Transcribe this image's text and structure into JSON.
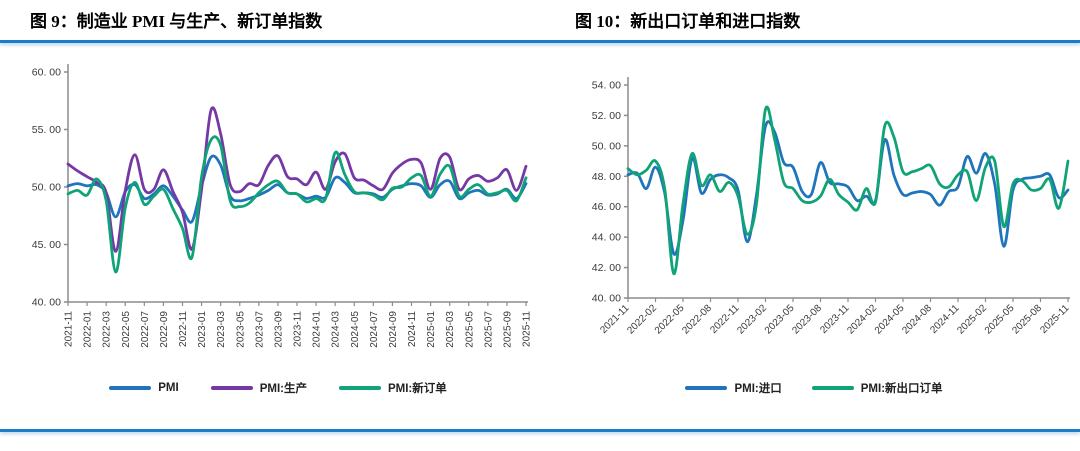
{
  "page": {
    "figure9_title": "图 9：制造业 PMI 与生产、新订单指数",
    "figure10_title": "图 10：新出口订单和进口指数",
    "accent_color": "#1C7CC5",
    "axis_color": "#8C8C8C"
  },
  "chart_data": [
    {
      "type": "line",
      "title": "制造业PMI与生产、新订单指数",
      "xlabel": "",
      "ylabel": "",
      "ylim": [
        40,
        60
      ],
      "y_ticks": [
        40,
        45,
        50,
        55,
        60
      ],
      "y_tick_labels": [
        "40. 00",
        "45. 00",
        "50. 00",
        "55. 00",
        "60. 00"
      ],
      "grid": false,
      "legend_position": "bottom",
      "tick_every": 2,
      "x": [
        "2021-11",
        "2021-12",
        "2022-01",
        "2022-02",
        "2022-03",
        "2022-04",
        "2022-05",
        "2022-06",
        "2022-07",
        "2022-08",
        "2022-09",
        "2022-10",
        "2022-11",
        "2022-12",
        "2023-01",
        "2023-02",
        "2023-03",
        "2023-04",
        "2023-05",
        "2023-06",
        "2023-07",
        "2023-08",
        "2023-09",
        "2023-10",
        "2023-11",
        "2023-12",
        "2024-01",
        "2024-02",
        "2024-03",
        "2024-04",
        "2024-05",
        "2024-06",
        "2024-07",
        "2024-08",
        "2024-09",
        "2024-10",
        "2024-11",
        "2024-12",
        "2025-01",
        "2025-02",
        "2025-03",
        "2025-04",
        "2025-05",
        "2025-06",
        "2025-07",
        "2025-08",
        "2025-09",
        "2025-10",
        "2025-11"
      ],
      "series": [
        {
          "name": "PMI",
          "color": "#1F74BC",
          "values": [
            50.1,
            50.3,
            50.1,
            50.2,
            49.5,
            47.4,
            49.6,
            50.2,
            49.0,
            49.4,
            50.1,
            49.2,
            48.0,
            47.0,
            50.1,
            52.6,
            51.9,
            49.2,
            48.8,
            49.0,
            49.3,
            49.7,
            50.2,
            49.5,
            49.4,
            49.0,
            49.2,
            49.1,
            50.8,
            50.4,
            49.5,
            49.5,
            49.4,
            49.1,
            49.8,
            50.1,
            50.3,
            50.1,
            49.1,
            50.2,
            50.5,
            49.0,
            49.5,
            49.7,
            49.3,
            49.4,
            49.8,
            49.0,
            50.3
          ]
        },
        {
          "name": "PMI:生产",
          "color": "#7539A5",
          "values": [
            52.0,
            51.4,
            50.9,
            50.4,
            49.5,
            44.4,
            49.7,
            52.8,
            49.8,
            49.8,
            51.5,
            49.6,
            47.8,
            44.6,
            49.8,
            56.7,
            54.6,
            50.2,
            49.6,
            50.3,
            50.2,
            51.9,
            52.7,
            50.9,
            50.7,
            50.2,
            51.3,
            49.8,
            52.2,
            52.9,
            50.8,
            50.6,
            50.1,
            49.8,
            51.2,
            52.0,
            52.4,
            52.1,
            49.8,
            52.5,
            52.6,
            49.8,
            50.7,
            51.0,
            50.5,
            50.8,
            51.5,
            49.7,
            51.8
          ]
        },
        {
          "name": "PMI:新订单",
          "color": "#0FA377",
          "values": [
            49.4,
            49.7,
            49.3,
            50.7,
            48.8,
            42.6,
            48.2,
            50.4,
            48.5,
            49.2,
            49.8,
            48.1,
            46.4,
            43.9,
            50.9,
            54.1,
            53.6,
            48.8,
            48.3,
            48.6,
            49.5,
            50.2,
            50.5,
            49.5,
            49.4,
            48.7,
            49.0,
            49.0,
            53.0,
            51.1,
            49.6,
            49.5,
            49.3,
            48.9,
            49.9,
            50.0,
            50.8,
            51.0,
            49.2,
            51.1,
            51.8,
            49.2,
            49.8,
            50.2,
            49.4,
            49.5,
            49.7,
            48.8,
            50.8
          ]
        }
      ]
    },
    {
      "type": "line",
      "title": "新出口订单和进口指数",
      "xlabel": "",
      "ylabel": "",
      "ylim": [
        40,
        54
      ],
      "y_ticks": [
        40,
        42,
        44,
        46,
        48,
        50,
        52,
        54
      ],
      "y_tick_labels": [
        "40. 00",
        "42. 00",
        "44. 00",
        "46. 00",
        "48. 00",
        "50. 00",
        "52. 00",
        "54. 00"
      ],
      "grid": false,
      "legend_position": "bottom",
      "tick_every": 3,
      "x": [
        "2021-11",
        "2021-12",
        "2022-01",
        "2022-02",
        "2022-03",
        "2022-04",
        "2022-05",
        "2022-06",
        "2022-07",
        "2022-08",
        "2022-09",
        "2022-10",
        "2022-11",
        "2022-12",
        "2023-01",
        "2023-02",
        "2023-03",
        "2023-04",
        "2023-05",
        "2023-06",
        "2023-07",
        "2023-08",
        "2023-09",
        "2023-10",
        "2023-11",
        "2023-12",
        "2024-01",
        "2024-02",
        "2024-03",
        "2024-04",
        "2024-05",
        "2024-06",
        "2024-07",
        "2024-08",
        "2024-09",
        "2024-10",
        "2024-11",
        "2024-12",
        "2025-01",
        "2025-02",
        "2025-03",
        "2025-04",
        "2025-05",
        "2025-06",
        "2025-07",
        "2025-08",
        "2025-09",
        "2025-10",
        "2025-11"
      ],
      "series": [
        {
          "name": "PMI:进口",
          "color": "#1F74BC",
          "values": [
            48.1,
            48.2,
            47.2,
            48.6,
            46.9,
            42.9,
            45.1,
            49.2,
            46.9,
            47.8,
            48.1,
            47.9,
            47.1,
            43.7,
            46.7,
            51.3,
            50.9,
            48.9,
            48.6,
            47.0,
            46.8,
            48.9,
            47.6,
            47.5,
            47.3,
            46.4,
            46.7,
            46.4,
            50.4,
            48.1,
            46.8,
            46.9,
            47.0,
            46.8,
            46.1,
            47.0,
            47.3,
            49.3,
            48.2,
            49.5,
            47.5,
            43.4,
            47.1,
            47.8,
            47.9,
            48.0,
            48.1,
            46.6,
            47.1
          ]
        },
        {
          "name": "PMI:新出口订单",
          "color": "#0FA377",
          "values": [
            48.5,
            48.1,
            48.4,
            49.0,
            47.2,
            41.6,
            46.2,
            49.5,
            47.4,
            48.1,
            47.0,
            47.6,
            46.7,
            44.2,
            46.1,
            52.4,
            50.4,
            47.6,
            47.2,
            46.4,
            46.3,
            46.7,
            47.8,
            46.8,
            46.3,
            45.8,
            47.2,
            46.3,
            51.3,
            50.6,
            48.3,
            48.3,
            48.5,
            48.7,
            47.5,
            47.3,
            48.1,
            48.3,
            46.4,
            48.6,
            49.0,
            44.7,
            47.5,
            47.7,
            47.1,
            47.2,
            47.8,
            45.9,
            49.0
          ]
        }
      ]
    }
  ]
}
